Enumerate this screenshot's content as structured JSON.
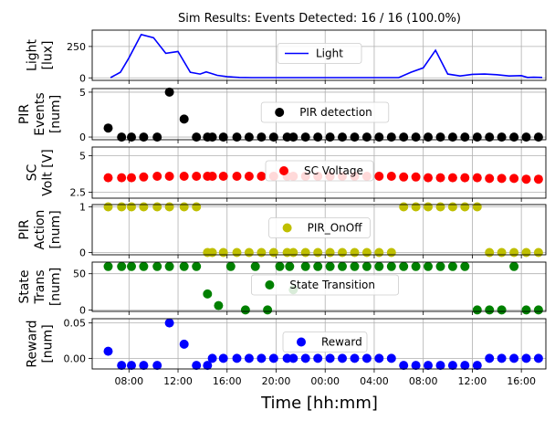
{
  "chart_data": {
    "type": "multi-panel",
    "title": "Sim Results: Events Detected: 16 / 16 (100.0%)",
    "xlabel": "Time [hh:mm]",
    "xlim": [
      5.0,
      42.0
    ],
    "x_tick_values": [
      8,
      12,
      16,
      20,
      24,
      28,
      32,
      36,
      40
    ],
    "x_tick_labels": [
      "08:00",
      "12:00",
      "16:00",
      "20:00",
      "00:00",
      "04:00",
      "08:00",
      "12:00",
      "16:00"
    ],
    "panels": [
      {
        "type": "line",
        "ylabel_lines": [
          "Light",
          "[lux]"
        ],
        "ylim": [
          -20,
          380
        ],
        "yticks": [
          0,
          250
        ],
        "color": "#0000ff",
        "legend": "Light",
        "x": [
          6.5,
          7.3,
          8.0,
          9.0,
          10.0,
          11.0,
          12.0,
          13.0,
          13.8,
          14.3,
          14.7,
          15.2,
          16.0,
          17.0,
          18.0,
          19.0,
          20.0,
          21.0,
          22.0,
          23.0,
          24.0,
          25.0,
          26.0,
          27.0,
          28.0,
          29.0,
          30.0,
          31.0,
          32.0,
          33.0,
          34.0,
          35.0,
          36.0,
          37.0,
          38.0,
          39.0,
          40.0,
          40.5,
          41.0,
          41.7
        ],
        "y": [
          2,
          45,
          160,
          345,
          320,
          195,
          210,
          45,
          30,
          48,
          35,
          20,
          10,
          3,
          2,
          2,
          2,
          2,
          2,
          2,
          2,
          2,
          2,
          2,
          2,
          2,
          2,
          45,
          80,
          220,
          30,
          15,
          28,
          30,
          25,
          15,
          18,
          3,
          5,
          3
        ]
      },
      {
        "type": "scatter",
        "ylabel_lines": [
          "PIR",
          "Events",
          "[num]"
        ],
        "ylim": [
          -0.3,
          5.4
        ],
        "yticks": [
          0,
          5
        ],
        "color": "#000000",
        "legend": "PIR detection",
        "x": [
          6.3,
          7.4,
          8.2,
          9.2,
          10.3,
          11.3,
          12.5,
          13.5,
          14.4,
          14.8,
          15.7,
          16.8,
          17.8,
          18.8,
          19.8,
          20.9,
          21.4,
          22.4,
          23.4,
          24.4,
          25.4,
          26.4,
          27.4,
          28.4,
          29.4,
          30.4,
          31.4,
          32.4,
          33.4,
          34.4,
          35.4,
          36.4,
          37.4,
          38.4,
          39.4,
          40.4,
          41.4
        ],
        "y": [
          1,
          0,
          0,
          0,
          0,
          5,
          2,
          0,
          0,
          0,
          0,
          0,
          0,
          0,
          0,
          0,
          0,
          0,
          0,
          0,
          0,
          0,
          0,
          0,
          0,
          0,
          0,
          0,
          0,
          0,
          0,
          0,
          0,
          0,
          0,
          0,
          0
        ]
      },
      {
        "type": "scatter",
        "ylabel_lines": [
          "SC",
          "Volt [V]"
        ],
        "ylim": [
          2.1,
          5.6
        ],
        "yticks": [
          2.5,
          5.0
        ],
        "color": "#ff0000",
        "legend": "SC Voltage",
        "x": [
          6.3,
          7.4,
          8.2,
          9.2,
          10.3,
          11.3,
          12.5,
          13.5,
          14.4,
          14.8,
          15.7,
          16.8,
          17.8,
          18.8,
          19.8,
          20.9,
          21.4,
          22.4,
          23.4,
          24.4,
          25.4,
          26.4,
          27.4,
          28.4,
          29.4,
          30.4,
          31.4,
          32.4,
          33.4,
          34.4,
          35.4,
          36.4,
          37.4,
          38.4,
          39.4,
          40.4,
          41.4
        ],
        "y": [
          3.5,
          3.5,
          3.5,
          3.55,
          3.6,
          3.6,
          3.6,
          3.6,
          3.6,
          3.6,
          3.6,
          3.6,
          3.6,
          3.6,
          3.6,
          3.6,
          3.6,
          3.6,
          3.6,
          3.6,
          3.6,
          3.6,
          3.6,
          3.6,
          3.6,
          3.55,
          3.55,
          3.5,
          3.5,
          3.5,
          3.5,
          3.5,
          3.45,
          3.45,
          3.45,
          3.4,
          3.4
        ]
      },
      {
        "type": "scatter",
        "ylabel_lines": [
          "PIR",
          "Action",
          "[num]"
        ],
        "ylim": [
          -0.05,
          1.05
        ],
        "yticks": [
          0,
          1
        ],
        "color": "#bfbf00",
        "legend": "PIR_OnOff",
        "x": [
          6.3,
          7.4,
          8.2,
          9.2,
          10.3,
          11.3,
          12.5,
          13.5,
          14.4,
          14.8,
          15.7,
          16.8,
          17.8,
          18.8,
          19.8,
          20.9,
          21.4,
          22.4,
          23.4,
          24.4,
          25.4,
          26.4,
          27.4,
          28.4,
          29.4,
          30.4,
          31.4,
          32.4,
          33.4,
          34.4,
          35.4,
          36.4,
          37.4,
          38.4,
          39.4,
          40.4,
          41.4
        ],
        "y": [
          1,
          1,
          1,
          1,
          1,
          1,
          1,
          1,
          0,
          0,
          0,
          0,
          0,
          0,
          0,
          0,
          0,
          0,
          0,
          0,
          0,
          0,
          0,
          0,
          0,
          1,
          1,
          1,
          1,
          1,
          1,
          1,
          0,
          0,
          0,
          0,
          0
        ]
      },
      {
        "type": "scatter",
        "ylabel_lines": [
          "State",
          "Trans",
          "[num]"
        ],
        "ylim": [
          -2,
          66
        ],
        "yticks": [
          0,
          50
        ],
        "color": "#008000",
        "legend": "State Transition",
        "x": [
          6.3,
          7.4,
          8.2,
          9.2,
          10.3,
          11.3,
          12.5,
          13.5,
          14.4,
          15.3,
          16.3,
          17.5,
          18.3,
          19.3,
          20.3,
          21.1,
          21.4,
          22.4,
          23.4,
          24.4,
          25.4,
          26.4,
          27.4,
          28.4,
          29.4,
          30.4,
          31.4,
          32.4,
          33.4,
          34.4,
          35.4,
          36.4,
          37.4,
          38.4,
          39.4,
          40.4,
          41.4
        ],
        "y": [
          60,
          60,
          60,
          60,
          60,
          60,
          60,
          60,
          22,
          6,
          60,
          0,
          60,
          0,
          60,
          60,
          28,
          60,
          60,
          60,
          60,
          60,
          60,
          60,
          60,
          60,
          60,
          60,
          60,
          60,
          60,
          0,
          0,
          0,
          60,
          0,
          0
        ]
      },
      {
        "type": "scatter",
        "ylabel_lines": [
          "Reward",
          "[num]"
        ],
        "ylim": [
          -0.015,
          0.056
        ],
        "yticks": [
          0.0,
          0.05
        ],
        "ytick_labels": [
          "0.00",
          "0.05"
        ],
        "color": "#0000ff",
        "legend": "Reward",
        "x": [
          6.3,
          7.4,
          8.2,
          9.2,
          10.3,
          11.3,
          12.5,
          13.5,
          14.4,
          14.8,
          15.7,
          16.8,
          17.8,
          18.8,
          19.8,
          20.9,
          21.4,
          22.4,
          23.4,
          24.4,
          25.4,
          26.4,
          27.4,
          28.4,
          29.4,
          30.4,
          31.4,
          32.4,
          33.4,
          34.4,
          35.4,
          36.4,
          37.4,
          38.4,
          39.4,
          40.4,
          41.4
        ],
        "y": [
          0.01,
          -0.01,
          -0.01,
          -0.01,
          -0.01,
          0.05,
          0.02,
          -0.01,
          -0.01,
          0.0,
          0.0,
          0.0,
          0.0,
          0.0,
          0.0,
          0.0,
          0.0,
          0.0,
          0.0,
          0.0,
          0.0,
          0.0,
          0.0,
          0.0,
          0.0,
          -0.01,
          -0.01,
          -0.01,
          -0.01,
          -0.01,
          -0.01,
          -0.01,
          0.0,
          0.0,
          0.0,
          0.0,
          0.0
        ]
      }
    ]
  }
}
